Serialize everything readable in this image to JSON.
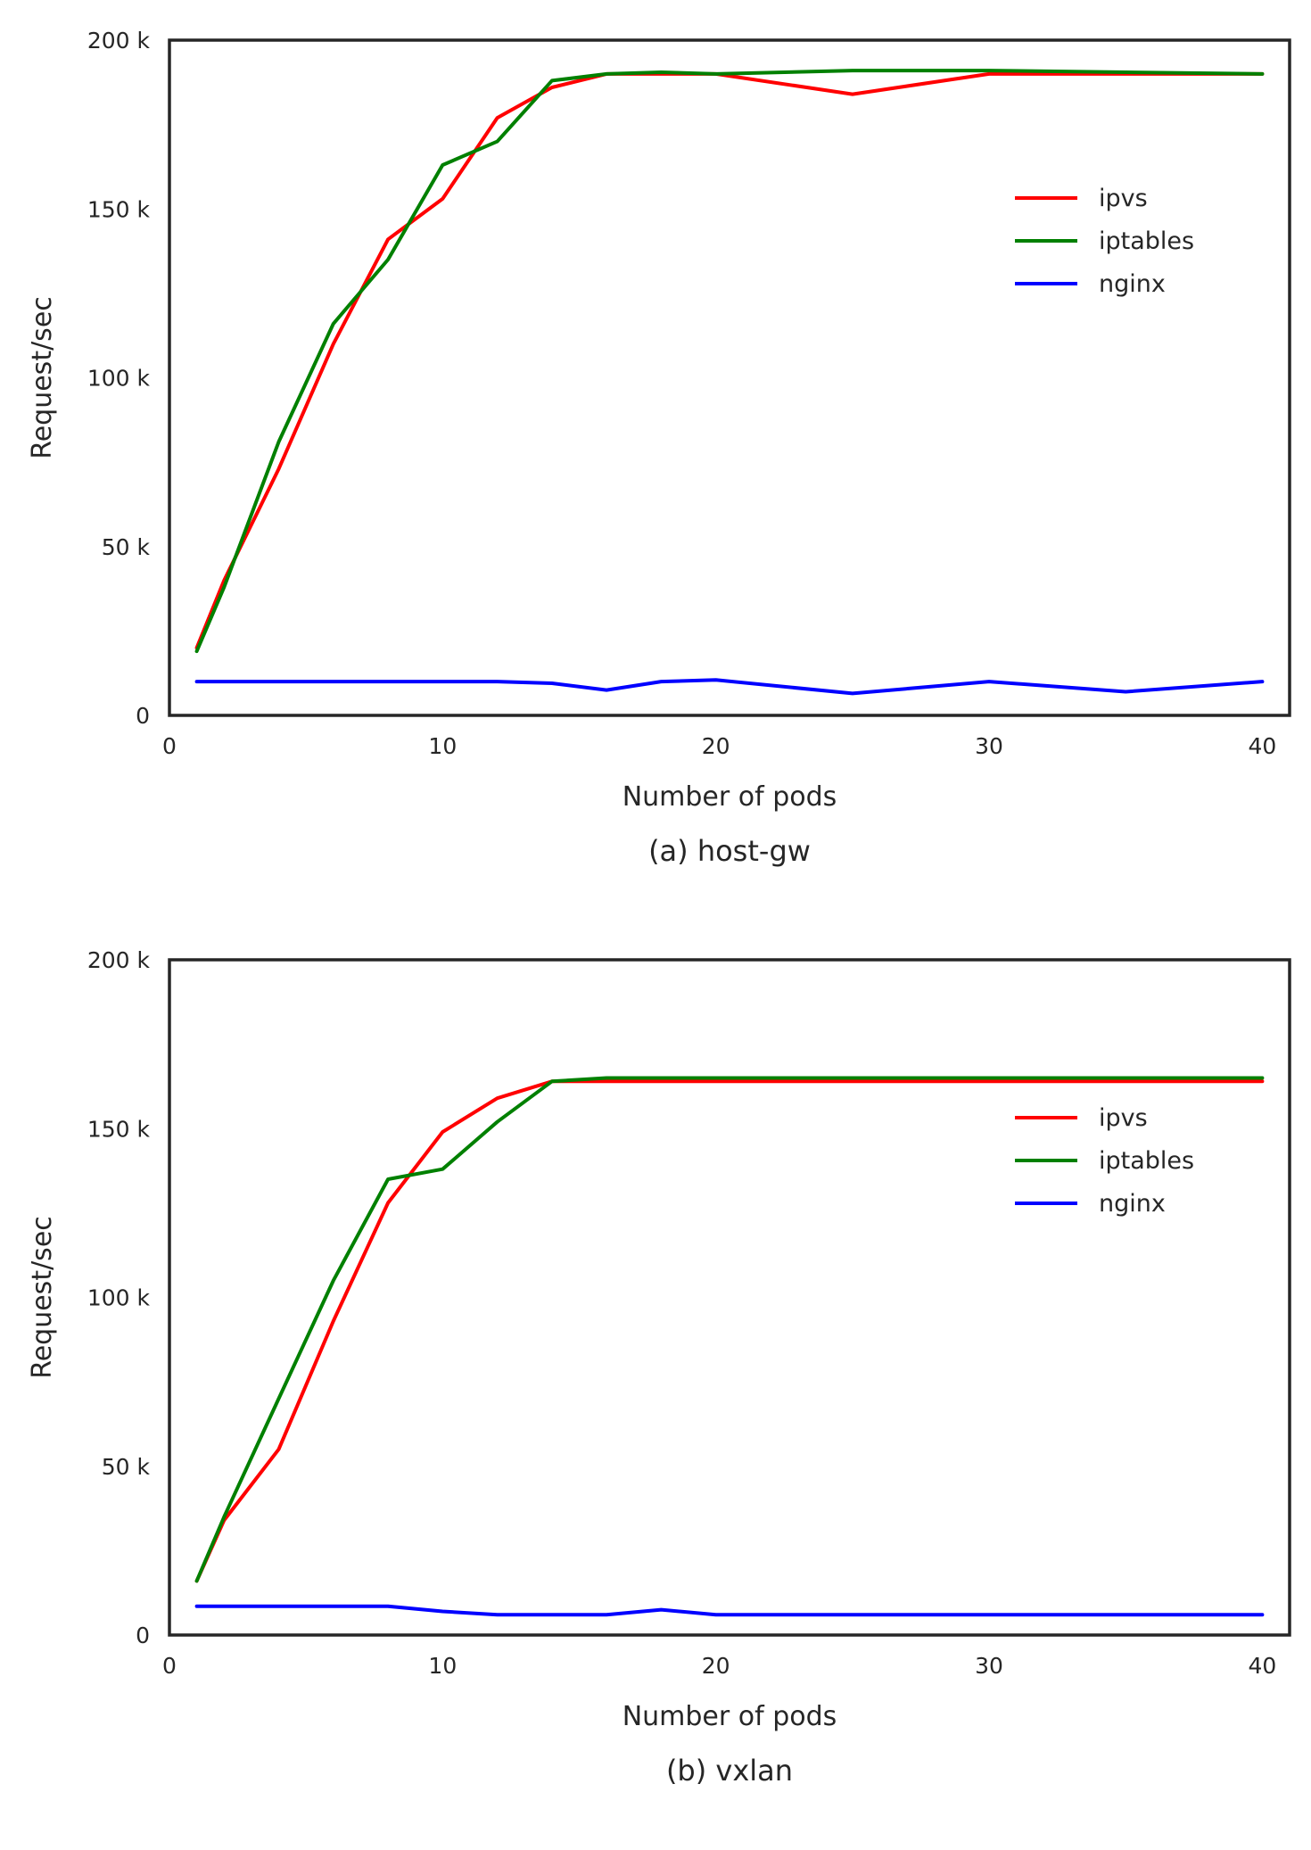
{
  "chart_data": [
    {
      "type": "line",
      "caption": "(a) host-gw",
      "xlabel": "Number of pods",
      "ylabel": "Request/sec",
      "xlim": [
        0,
        41
      ],
      "ylim": [
        0,
        200000
      ],
      "xticks": [
        0,
        10,
        20,
        30,
        40
      ],
      "xtick_labels": [
        "0",
        "10",
        "20",
        "30",
        "40"
      ],
      "yticks": [
        0,
        50000,
        100000,
        150000,
        200000
      ],
      "ytick_labels": [
        "0",
        "50 k",
        "100 k",
        "150 k",
        "200 k"
      ],
      "grid": false,
      "legend_position": "center-right",
      "series": [
        {
          "name": "ipvs",
          "color": "#ff0000",
          "x": [
            1,
            2,
            4,
            6,
            8,
            10,
            12,
            14,
            16,
            18,
            20,
            25,
            30,
            35,
            40
          ],
          "y": [
            20000,
            40000,
            73000,
            110000,
            141000,
            153000,
            177000,
            186000,
            190000,
            190000,
            190000,
            184000,
            190000,
            190000,
            190000
          ]
        },
        {
          "name": "iptables",
          "color": "#008000",
          "x": [
            1,
            2,
            4,
            6,
            8,
            10,
            12,
            14,
            16,
            18,
            20,
            25,
            30,
            35,
            40
          ],
          "y": [
            19000,
            38000,
            81000,
            116000,
            135000,
            163000,
            170000,
            188000,
            190000,
            190500,
            190000,
            191000,
            191000,
            190500,
            190000
          ]
        },
        {
          "name": "nginx",
          "color": "#0000ff",
          "x": [
            1,
            2,
            4,
            6,
            8,
            10,
            12,
            14,
            16,
            18,
            20,
            25,
            30,
            35,
            40
          ],
          "y": [
            10000,
            10000,
            10000,
            10000,
            10000,
            10000,
            10000,
            9500,
            7500,
            10000,
            10500,
            6500,
            10000,
            7000,
            10000
          ]
        }
      ]
    },
    {
      "type": "line",
      "caption": "(b) vxlan",
      "xlabel": "Number of pods",
      "ylabel": "Request/sec",
      "xlim": [
        0,
        41
      ],
      "ylim": [
        0,
        200000
      ],
      "xticks": [
        0,
        10,
        20,
        30,
        40
      ],
      "xtick_labels": [
        "0",
        "10",
        "20",
        "30",
        "40"
      ],
      "yticks": [
        0,
        50000,
        100000,
        150000,
        200000
      ],
      "ytick_labels": [
        "0",
        "50 k",
        "100 k",
        "150 k",
        "200 k"
      ],
      "grid": false,
      "legend_position": "center-right",
      "series": [
        {
          "name": "ipvs",
          "color": "#ff0000",
          "x": [
            1,
            2,
            4,
            6,
            8,
            10,
            12,
            14,
            16,
            18,
            20,
            25,
            30,
            35,
            40
          ],
          "y": [
            16000,
            34000,
            55000,
            93000,
            128000,
            149000,
            159000,
            164000,
            164000,
            164000,
            164000,
            164000,
            164000,
            164000,
            164000
          ]
        },
        {
          "name": "iptables",
          "color": "#008000",
          "x": [
            1,
            2,
            4,
            6,
            8,
            10,
            12,
            14,
            16,
            18,
            20,
            25,
            30,
            35,
            40
          ],
          "y": [
            16000,
            35000,
            70000,
            105000,
            135000,
            138000,
            152000,
            164000,
            165000,
            165000,
            165000,
            165000,
            165000,
            165000,
            165000
          ]
        },
        {
          "name": "nginx",
          "color": "#0000ff",
          "x": [
            1,
            2,
            4,
            6,
            8,
            10,
            12,
            14,
            16,
            18,
            20,
            25,
            30,
            35,
            40
          ],
          "y": [
            8500,
            8500,
            8500,
            8500,
            8500,
            7000,
            6000,
            6000,
            6000,
            7500,
            6000,
            6000,
            6000,
            6000,
            6000
          ]
        }
      ]
    }
  ]
}
